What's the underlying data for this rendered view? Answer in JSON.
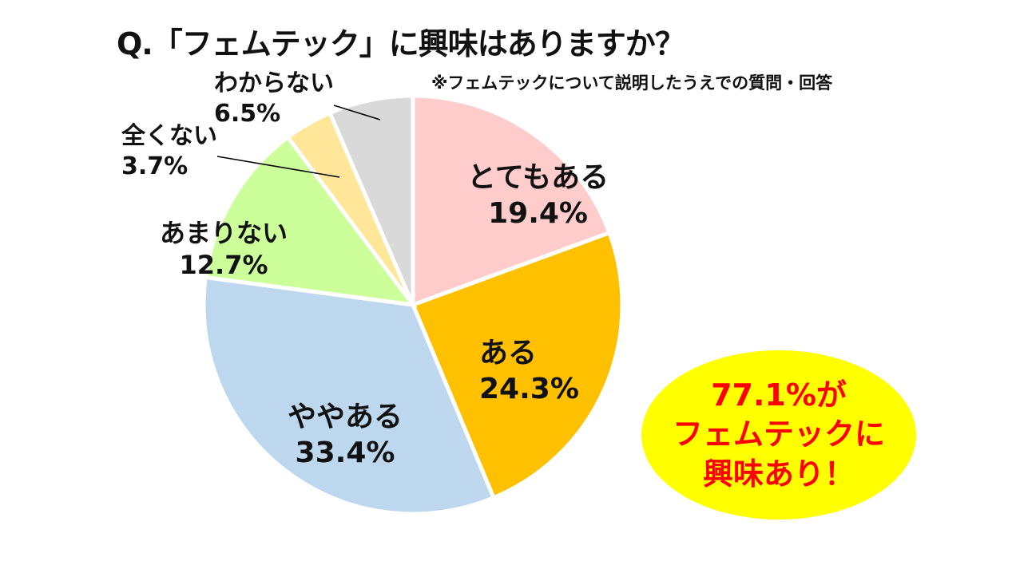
{
  "chart_data": {
    "type": "pie",
    "title": "Q.「フェムテック」に興味はありますか？",
    "note": "※フェムテックについて説明したうえでの質問・回答",
    "start": "top",
    "direction": "clockwise",
    "slices": [
      {
        "label": "とてもある",
        "value": 19.4,
        "value_label": "19.4%",
        "color": "#FFCCCC"
      },
      {
        "label": "ある",
        "value": 24.3,
        "value_label": "24.3%",
        "color": "#FFC000"
      },
      {
        "label": "ややある",
        "value": 33.4,
        "value_label": "33.4%",
        "color": "#BDD7EE"
      },
      {
        "label": "あまりない",
        "value": 12.7,
        "value_label": "12.7%",
        "color": "#CCFF99"
      },
      {
        "label": "全くない",
        "value": 3.7,
        "value_label": "3.7%",
        "color": "#FFE699"
      },
      {
        "label": "わからない",
        "value": 6.5,
        "value_label": "6.5%",
        "color": "#D9D9D9"
      }
    ],
    "callout": {
      "lines": [
        "77.1%が",
        "フェムテックに",
        "興味あり！"
      ],
      "text_color": "#FF0000",
      "fill": "#FFFF00"
    }
  }
}
